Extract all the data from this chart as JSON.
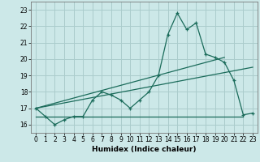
{
  "xlabel": "Humidex (Indice chaleur)",
  "background_color": "#cce8e8",
  "grid_color": "#aacccc",
  "line_color": "#1a6b5a",
  "xlim": [
    -0.5,
    23.5
  ],
  "ylim": [
    15.5,
    23.5
  ],
  "yticks": [
    16,
    17,
    18,
    19,
    20,
    21,
    22,
    23
  ],
  "xticks": [
    0,
    1,
    2,
    3,
    4,
    5,
    6,
    7,
    8,
    9,
    10,
    11,
    12,
    13,
    14,
    15,
    16,
    17,
    18,
    19,
    20,
    21,
    22,
    23
  ],
  "series_main": [
    17.0,
    16.5,
    16.0,
    16.3,
    16.5,
    16.5,
    17.5,
    18.0,
    17.8,
    17.5,
    17.0,
    17.5,
    18.0,
    19.0,
    21.5,
    22.8,
    21.8,
    22.2,
    20.3,
    20.1,
    19.8,
    18.7,
    16.6,
    16.7
  ],
  "series_flat": [
    [
      0,
      22
    ],
    [
      16.5,
      16.5
    ]
  ],
  "series_trend1": [
    [
      0,
      23
    ],
    [
      17.0,
      19.5
    ]
  ],
  "series_trend2": [
    [
      0,
      20
    ],
    [
      17.0,
      20.1
    ]
  ]
}
